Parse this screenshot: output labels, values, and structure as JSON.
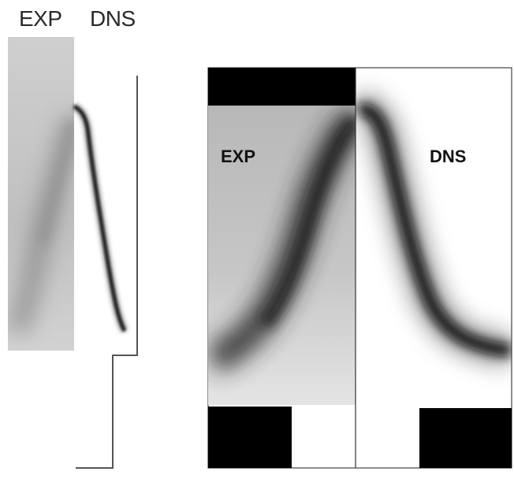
{
  "labels": {
    "left_exp": "EXP",
    "left_dns": "DNS",
    "right_exp": "EXP",
    "right_dns": "DNS"
  },
  "colors": {
    "background": "#ffffff",
    "black_block": "#000000",
    "plume": "#1a1a1a",
    "exp_panel": "#bfbfbf"
  }
}
